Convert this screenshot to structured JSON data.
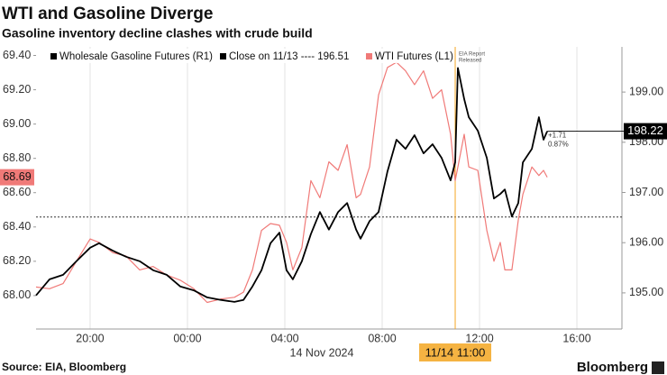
{
  "chart_data": {
    "type": "line",
    "title": "WTI and Gasoline Diverge",
    "subtitle": "Gasoline inventory decline clashes with crude build",
    "xlabel": "14 Nov 2024",
    "source": "Source: EIA, Bloomberg",
    "brand": "Bloomberg",
    "xlim": [
      -6.22,
      17.85
    ],
    "xticks": [
      {
        "value": -4,
        "label": "20:00"
      },
      {
        "value": 0,
        "label": "00:00"
      },
      {
        "value": 4,
        "label": "04:00"
      },
      {
        "value": 8,
        "label": "08:00"
      },
      {
        "value": 12,
        "label": "12:00"
      },
      {
        "value": 16,
        "label": "16:00"
      }
    ],
    "ylim": [
      67.805,
      69.45
    ],
    "yticks": [
      {
        "value": 68,
        "label": "68.00"
      },
      {
        "value": 68.2,
        "label": "68.20"
      },
      {
        "value": 68.4,
        "label": "68.40"
      },
      {
        "value": 68.6,
        "label": "68.60"
      },
      {
        "value": 68.8,
        "label": "68.80"
      },
      {
        "value": 69,
        "label": "69.00"
      },
      {
        "value": 69.2,
        "label": "69.20"
      },
      {
        "value": 69.4,
        "label": "69.40"
      }
    ],
    "y2lim": [
      194.28,
      199.9
    ],
    "y2ticks": [
      {
        "value": 195,
        "label": "195.00"
      },
      {
        "value": 196,
        "label": "196.00"
      },
      {
        "value": 197,
        "label": "197.00"
      },
      {
        "value": 198,
        "label": "198.00"
      },
      {
        "value": 199,
        "label": "199.00"
      }
    ],
    "grid": true,
    "x": [
      -6.22,
      -5.67,
      -5.11,
      -4.56,
      -4.0,
      -3.63,
      -3.07,
      -2.52,
      -1.96,
      -1.41,
      -0.85,
      -0.3,
      0.26,
      0.81,
      1.37,
      1.93,
      2.3,
      2.67,
      3.04,
      3.41,
      3.78,
      4.07,
      4.33,
      4.7,
      5.07,
      5.44,
      5.81,
      6.19,
      6.56,
      6.93,
      7.11,
      7.48,
      7.85,
      8.22,
      8.59,
      8.96,
      9.33,
      9.7,
      10.07,
      10.44,
      10.81,
      11.0,
      11.11,
      11.37,
      11.56,
      11.93,
      12.3,
      12.59,
      12.85,
      13.04,
      13.33,
      13.59,
      13.78,
      14.15,
      14.44,
      14.63,
      14.78
    ],
    "series": [
      {
        "name": "Wholesale Gasoline Futures (R1)",
        "color": "#000000",
        "axis": "y2",
        "values": [
          194.95,
          195.27,
          195.36,
          195.63,
          195.9,
          195.99,
          195.84,
          195.72,
          195.63,
          195.45,
          195.36,
          195.13,
          195.05,
          194.91,
          194.86,
          194.82,
          194.86,
          195.13,
          195.45,
          195.99,
          196.2,
          195.45,
          195.27,
          195.63,
          196.17,
          196.61,
          196.26,
          196.61,
          196.79,
          196.26,
          196.08,
          196.43,
          196.61,
          197.42,
          198.05,
          197.87,
          198.14,
          197.78,
          197.96,
          197.69,
          197.24,
          197.6,
          199.48,
          198.86,
          198.5,
          198.23,
          197.69,
          196.88,
          196.97,
          197.06,
          196.52,
          196.79,
          197.6,
          197.87,
          198.5,
          198.05,
          198.22
        ]
      },
      {
        "name": "WTI Futures (L1)",
        "color": "#f07a78",
        "values": [
          68.05,
          68.04,
          68.07,
          68.2,
          68.33,
          68.31,
          68.25,
          68.23,
          68.15,
          68.17,
          68.12,
          68.09,
          68.04,
          67.96,
          67.98,
          67.99,
          68.02,
          68.15,
          68.38,
          68.42,
          68.41,
          68.31,
          68.15,
          68.28,
          68.67,
          68.57,
          68.78,
          68.73,
          68.88,
          68.57,
          68.59,
          68.75,
          69.17,
          69.33,
          69.36,
          69.31,
          69.23,
          69.31,
          69.15,
          69.2,
          68.94,
          68.67,
          68.75,
          68.94,
          68.75,
          68.73,
          68.38,
          68.2,
          68.31,
          68.15,
          68.15,
          68.44,
          68.59,
          68.75,
          68.7,
          68.73,
          68.69
        ]
      }
    ],
    "close_label": "Close on 11/13 ----",
    "close_value": 196.51,
    "event": {
      "value": 11,
      "label": "11/14 11:00",
      "text": [
        "EIA Report",
        "Released"
      ]
    },
    "change": [
      "+1.71",
      "0.87%"
    ]
  }
}
